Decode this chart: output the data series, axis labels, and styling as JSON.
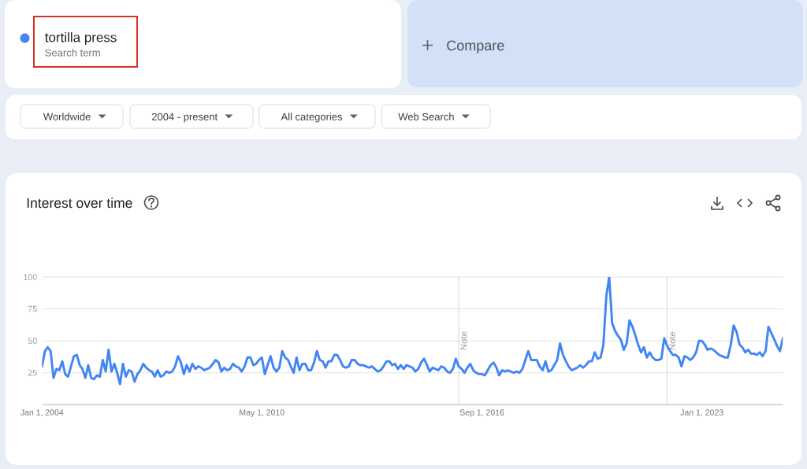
{
  "chart_data": {
    "type": "line",
    "title": "Interest over time",
    "legend": "top left",
    "grid": "y",
    "annotations": [
      "Search term",
      "Compare",
      "Worldwide",
      "2004 - present",
      "All categories",
      "Web Search"
    ],
    "x": [
      "2004-01",
      "2004-02",
      "2004-03",
      "2004-04",
      "2004-05",
      "2004-06",
      "2004-07",
      "2004-08",
      "2004-09",
      "2004-10",
      "2004-11",
      "2004-12",
      "2005-01",
      "2005-02",
      "2005-03",
      "2005-04",
      "2005-05",
      "2005-06",
      "2005-07",
      "2005-08",
      "2005-09",
      "2005-10",
      "2005-11",
      "2005-12",
      "2006-01",
      "2006-02",
      "2006-03",
      "2006-04",
      "2006-05",
      "2006-06",
      "2006-07",
      "2006-08",
      "2006-09",
      "2006-10",
      "2006-11",
      "2006-12",
      "2007-01",
      "2007-02",
      "2007-03",
      "2007-04",
      "2007-05",
      "2007-06",
      "2007-07",
      "2007-08",
      "2007-09",
      "2007-10",
      "2007-11",
      "2007-12",
      "2008-01",
      "2008-02",
      "2008-03",
      "2008-04",
      "2008-05",
      "2008-06",
      "2008-07",
      "2008-08",
      "2008-09",
      "2008-10",
      "2008-11",
      "2008-12",
      "2009-01",
      "2009-02",
      "2009-03",
      "2009-04",
      "2009-05",
      "2009-06",
      "2009-07",
      "2009-08",
      "2009-09",
      "2009-10",
      "2009-11",
      "2009-12",
      "2010-01",
      "2010-02",
      "2010-03",
      "2010-04",
      "2010-05",
      "2010-06",
      "2010-07",
      "2010-08",
      "2010-09",
      "2010-10",
      "2010-11",
      "2010-12",
      "2011-01",
      "2011-02",
      "2011-03",
      "2011-04",
      "2011-05",
      "2011-06",
      "2011-07",
      "2011-08",
      "2011-09",
      "2011-10",
      "2011-11",
      "2011-12",
      "2012-01",
      "2012-02",
      "2012-03",
      "2012-04",
      "2012-05",
      "2012-06",
      "2012-07",
      "2012-08",
      "2012-09",
      "2012-10",
      "2012-11",
      "2012-12",
      "2013-01",
      "2013-02",
      "2013-03",
      "2013-04",
      "2013-05",
      "2013-06",
      "2013-07",
      "2013-08",
      "2013-09",
      "2013-10",
      "2013-11",
      "2013-12",
      "2014-01",
      "2014-02",
      "2014-03",
      "2014-04",
      "2014-05",
      "2014-06",
      "2014-07",
      "2014-08",
      "2014-09",
      "2014-10",
      "2014-11",
      "2014-12",
      "2015-01",
      "2015-02",
      "2015-03",
      "2015-04",
      "2015-05",
      "2015-06",
      "2015-07",
      "2015-08",
      "2015-09",
      "2015-10",
      "2015-11",
      "2015-12",
      "2016-01",
      "2016-02",
      "2016-03",
      "2016-04",
      "2016-05",
      "2016-06",
      "2016-07",
      "2016-08",
      "2016-09",
      "2016-10",
      "2016-11",
      "2016-12",
      "2017-01",
      "2017-02",
      "2017-03",
      "2017-04",
      "2017-05",
      "2017-06",
      "2017-07",
      "2017-08",
      "2017-09",
      "2017-10",
      "2017-11",
      "2017-12",
      "2018-01",
      "2018-02",
      "2018-03",
      "2018-04",
      "2018-05",
      "2018-06",
      "2018-07",
      "2018-08",
      "2018-09",
      "2018-10",
      "2018-11",
      "2018-12",
      "2019-01",
      "2019-02",
      "2019-03",
      "2019-04",
      "2019-05",
      "2019-06",
      "2019-07",
      "2019-08",
      "2019-09",
      "2019-10",
      "2019-11",
      "2019-12",
      "2020-01",
      "2020-02",
      "2020-03",
      "2020-04",
      "2020-05",
      "2020-06",
      "2020-07",
      "2020-08",
      "2020-09",
      "2020-10",
      "2020-11",
      "2020-12",
      "2021-01",
      "2021-02",
      "2021-03",
      "2021-04",
      "2021-05",
      "2021-06",
      "2021-07",
      "2021-08",
      "2021-09",
      "2021-10",
      "2021-11",
      "2021-12",
      "2022-01",
      "2022-02",
      "2022-03",
      "2022-04",
      "2022-05",
      "2022-06",
      "2022-07",
      "2022-08",
      "2022-09",
      "2022-10",
      "2022-11",
      "2022-12",
      "2023-01",
      "2023-02",
      "2023-03",
      "2023-04",
      "2023-05",
      "2023-06",
      "2023-07",
      "2023-08",
      "2023-09",
      "2023-10",
      "2023-11",
      "2023-12",
      "2024-01",
      "2024-02",
      "2024-03",
      "2024-04",
      "2024-05",
      "2024-06",
      "2024-07",
      "2024-08",
      "2024-09",
      "2024-10",
      "2024-11",
      "2024-12",
      "2025-01",
      "2025-02",
      "2025-03",
      "2025-04",
      "2025-05"
    ],
    "series": [
      {
        "name": "tortilla press",
        "color": "#4285f4",
        "values": [
          30,
          42,
          45,
          42,
          21,
          28,
          27,
          34,
          24,
          22,
          30,
          38,
          39,
          31,
          28,
          21,
          31,
          21,
          20,
          23,
          22,
          35,
          26,
          43,
          26,
          32,
          25,
          16,
          32,
          22,
          27,
          26,
          18,
          24,
          27,
          32,
          29,
          27,
          26,
          22,
          27,
          22,
          23,
          26,
          25,
          26,
          30,
          38,
          33,
          24,
          31,
          26,
          32,
          28,
          30,
          29,
          27,
          28,
          29,
          32,
          35,
          33,
          26,
          29,
          27,
          28,
          32,
          30,
          29,
          26,
          30,
          37,
          37,
          31,
          32,
          35,
          37,
          24,
          31,
          38,
          29,
          26,
          29,
          42,
          37,
          35,
          30,
          25,
          37,
          27,
          32,
          32,
          27,
          27,
          33,
          42,
          35,
          34,
          29,
          34,
          34,
          39,
          39,
          35,
          30,
          29,
          30,
          35,
          35,
          32,
          31,
          31,
          30,
          29,
          30,
          28,
          26,
          27,
          30,
          34,
          34,
          31,
          32,
          28,
          31,
          28,
          31,
          30,
          29,
          26,
          28,
          33,
          36,
          31,
          26,
          29,
          28,
          27,
          30,
          29,
          26,
          25,
          28,
          36,
          30,
          28,
          25,
          29,
          32,
          27,
          25,
          24,
          24,
          23,
          27,
          31,
          33,
          29,
          23,
          27,
          26,
          27,
          26,
          25,
          26,
          25,
          28,
          35,
          42,
          35,
          35,
          35,
          30,
          27,
          34,
          26,
          27,
          31,
          35,
          48,
          39,
          34,
          30,
          27,
          28,
          29,
          31,
          29,
          31,
          34,
          34,
          41,
          36,
          37,
          47,
          85,
          100,
          64,
          58,
          54,
          51,
          43,
          48,
          66,
          61,
          54,
          47,
          41,
          45,
          37,
          41,
          37,
          35,
          35,
          36,
          52,
          46,
          42,
          39,
          39,
          37,
          30,
          38,
          37,
          35,
          37,
          41,
          50,
          50,
          47,
          43,
          44,
          43,
          41,
          39,
          38,
          37,
          37,
          47,
          62,
          57,
          47,
          45,
          41,
          43,
          40,
          40,
          39,
          41,
          38,
          42,
          61,
          56,
          51,
          46,
          42,
          52
        ]
      }
    ],
    "xlim": [
      "2004-01",
      "2025-05"
    ],
    "xticks": [
      {
        "value": "2004-01-01",
        "label": "Jan 1, 2004"
      },
      {
        "value": "2010-05-01",
        "label": "May 1, 2010"
      },
      {
        "value": "2016-09-01",
        "label": "Sep 1, 2016"
      },
      {
        "value": "2023-01-01",
        "label": "Jan 1, 2023"
      }
    ],
    "ylim": [
      0,
      100
    ],
    "yticks": [
      25,
      50,
      75,
      100
    ],
    "ref_lines": [
      {
        "axis": "x",
        "value": "2016-01-01",
        "label": "Note",
        "color": "#d6d6d6"
      },
      {
        "axis": "x",
        "value": "2022-01-01",
        "label": "Note",
        "color": "#d6d6d6"
      }
    ]
  }
}
